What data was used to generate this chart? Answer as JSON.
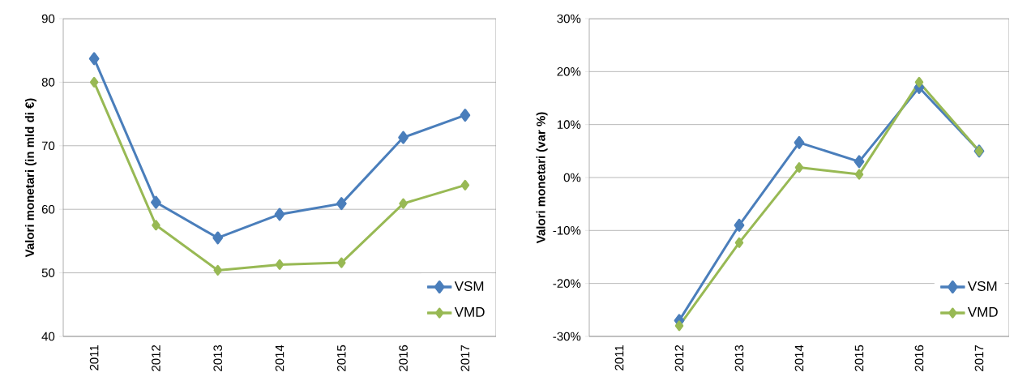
{
  "chart_data": [
    {
      "type": "line",
      "ylabel": "Valori monetari (in mld di €)",
      "categories": [
        "2011",
        "2012",
        "2013",
        "2014",
        "2015",
        "2016",
        "2017"
      ],
      "ylim": [
        40,
        90
      ],
      "yticks": [
        40,
        50,
        60,
        70,
        80,
        90
      ],
      "grid": "y",
      "legend": "bottom right",
      "marker": "diamond",
      "line_style": "solid",
      "series": [
        {
          "name": "VSM",
          "color": "#4a7ebb",
          "values": [
            83.7,
            61.1,
            55.5,
            59.2,
            60.9,
            71.3,
            74.8
          ]
        },
        {
          "name": "VMD",
          "color": "#98b954",
          "values": [
            80.0,
            57.5,
            50.4,
            51.3,
            51.6,
            60.9,
            63.8
          ]
        }
      ]
    },
    {
      "type": "line",
      "ylabel": "Valori monetari (var %)",
      "categories": [
        "2011",
        "2012",
        "2013",
        "2014",
        "2015",
        "2016",
        "2017"
      ],
      "ylim": [
        -30,
        30
      ],
      "yticks": [
        {
          "value": -30,
          "label": "-30%"
        },
        {
          "value": -20,
          "label": "-20%"
        },
        {
          "value": -10,
          "label": "-10%"
        },
        {
          "value": 0,
          "label": "0%"
        },
        {
          "value": 10,
          "label": "10%"
        },
        {
          "value": 20,
          "label": "20%"
        },
        {
          "value": 30,
          "label": "30%"
        }
      ],
      "grid": "y",
      "legend": "bottom right",
      "marker": "diamond",
      "line_style": "solid",
      "series": [
        {
          "name": "VSM",
          "color": "#4a7ebb",
          "values": [
            null,
            -27,
            -9,
            6.6,
            3,
            17,
            5
          ]
        },
        {
          "name": "VMD",
          "color": "#98b954",
          "values": [
            null,
            -28,
            -12.3,
            1.9,
            0.6,
            18,
            5
          ]
        }
      ]
    }
  ]
}
